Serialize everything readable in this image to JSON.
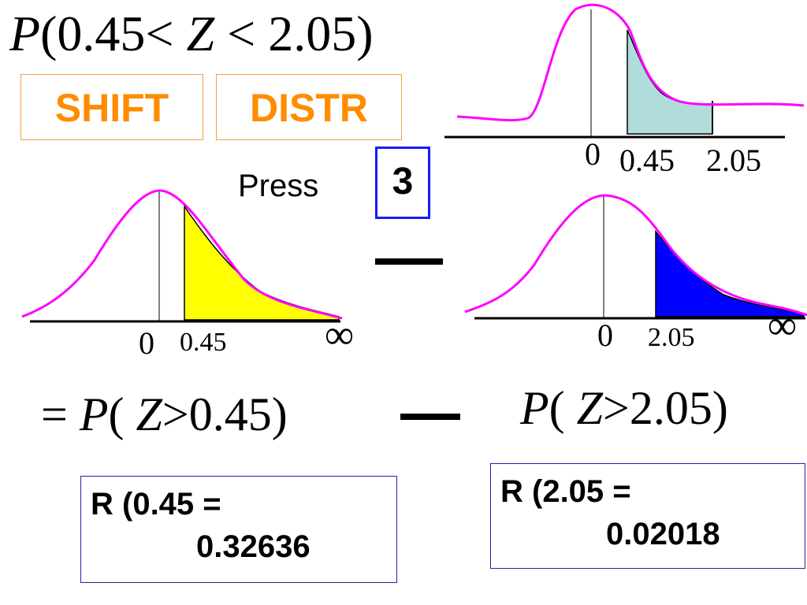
{
  "title_equation": {
    "p": "P",
    "open": "(",
    "lower": "0.45",
    "lt1": "<",
    "z": "Z",
    "lt2": "<",
    "upper": "2.05",
    "close": ")"
  },
  "keys": {
    "shift": "SHIFT",
    "distr": "DISTR",
    "press": "Press",
    "key3": "3"
  },
  "curve_top": {
    "zero": "0",
    "a": "0.45",
    "b": "2.05",
    "curve_color": "#ff00ff",
    "fill_color": "#b0dcdc"
  },
  "curve_left": {
    "zero": "0",
    "a": "0.45",
    "inf": "∞",
    "fill_color": "#ffff00"
  },
  "curve_right": {
    "zero": "0",
    "a": "2.05",
    "inf": "∞",
    "fill_color": "#0000ff"
  },
  "equation_bottom": {
    "eq": "=",
    "left": {
      "p": "P",
      "open": "(",
      "z": "Z",
      "gt": ">",
      "val": "0.45",
      "close": ")"
    },
    "right": {
      "p": "P",
      "open": "(",
      "z": "Z",
      "gt": ">",
      "val": "2.05",
      "close": ")"
    }
  },
  "results": {
    "a_line1": "R (0.45 =",
    "a_line2": "0.32636",
    "b_line1": "R (2.05 =",
    "b_line2": "0.02018"
  }
}
